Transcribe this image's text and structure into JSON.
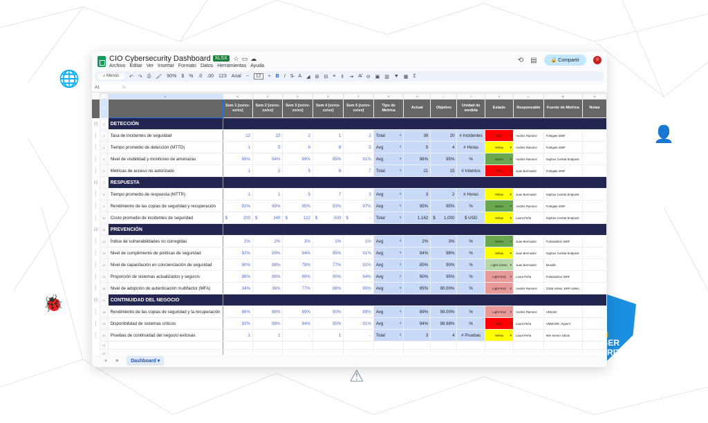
{
  "app": {
    "title": "CIO Cybersecurity Dashboard",
    "badge": "XLSX",
    "menu": [
      "Archivo",
      "Editar",
      "Ver",
      "Insertar",
      "Formato",
      "Datos",
      "Herramientas",
      "Ayuda"
    ],
    "share_label": "Compartir",
    "avatar_initial": "0"
  },
  "toolbar": {
    "search": "Menús",
    "zoom": "90%",
    "font": "Arial",
    "font_size": "12",
    "currency": "$",
    "percent": "%",
    "dec_dec": ".0",
    "inc_dec": ".00",
    "format": "123",
    "bold": "B",
    "italic": "I"
  },
  "formula_bar": {
    "cell": "A1",
    "fx": "fx"
  },
  "columns": [
    "A",
    "B",
    "C",
    "D",
    "E",
    "F",
    "G",
    "H",
    "I",
    "J",
    "K",
    "L",
    "M",
    "N"
  ],
  "headers": [
    "",
    "Sem 1 [xx/xx-xx/xx]",
    "Sem 2 [xx/xx-xx/xx]",
    "Sem 3 [xx/xx-xx/xx]",
    "Sem 4 [xx/xx-xx/xx]",
    "Sem 5 [xx/xx-xx/xx]",
    "Tipo de Metrica",
    "Actual",
    "Objetivo",
    "Unidad de medida",
    "Estado",
    "Responsable",
    "Fuente de Metrica",
    "Notas"
  ],
  "status_colors": {
    "Red": "#ff0000",
    "Yellow": "#ffff00",
    "Green": "#6aa84f",
    "Light Green": "#b6d7a8",
    "Light Red": "#ea9999"
  },
  "rows": [
    {
      "section": "DETECCIÓN"
    },
    {
      "metric": "Tasa de incidentes de seguridad",
      "weeks": [
        "12",
        "22",
        "2",
        "1",
        "2"
      ],
      "type": "Total",
      "actual": "39",
      "target": "20",
      "unit": "# Incidentes",
      "status": "Red",
      "owner": "Andrés Ramirez",
      "source": "Fortigate 200F"
    },
    {
      "metric": "Tiempo promedio de detección (MTTD)",
      "weeks": [
        "1",
        "5",
        "6",
        "8",
        "5"
      ],
      "type": "Avg",
      "actual": "5",
      "target": "4",
      "unit": "# Horas",
      "status": "Yellow",
      "owner": "Andrés Ramirez",
      "source": "Fortigate 200F"
    },
    {
      "metric": "Nivel de visibilidad y monitoreo de amenazas",
      "weeks": [
        "99%",
        "94%",
        "99%",
        "95%",
        "91%"
      ],
      "type": "Avg",
      "actual": "96%",
      "target": "95%",
      "unit": "%",
      "status": "Green",
      "owner": "Andrés Ramirez",
      "source": "Sophos Central Endpoint"
    },
    {
      "metric": "Métricas de acceso no autorizado",
      "weeks": [
        "1",
        "2",
        "5",
        "6",
        "7"
      ],
      "type": "Total",
      "actual": "21",
      "target": "15",
      "unit": "# Intentos",
      "status": "Red",
      "owner": "Juan Bermudez",
      "source": "Fortigate 200F"
    },
    {
      "section": "RESPUESTA"
    },
    {
      "metric": "Tiempo promedio de respuesta (MTTR)",
      "weeks": [
        "1",
        "1",
        "5",
        "7",
        "3"
      ],
      "type": "Avg",
      "actual": "3",
      "target": "2",
      "unit": "# Horas",
      "status": "Yellow",
      "owner": "Juan Bermudez",
      "source": "Sophos Central Endpoint"
    },
    {
      "metric": "Rendimiento de las copias de seguridad y recuperación",
      "weeks": [
        "92%",
        "99%",
        "95%",
        "93%",
        "97%"
      ],
      "type": "Avg",
      "actual": "95%",
      "target": "95%",
      "unit": "%",
      "status": "Green",
      "owner": "Andrés Ramirez",
      "source": "Fortigate 200F"
    },
    {
      "metric": "Costo promedio de incidentes de seguridad",
      "currency": "$",
      "weeks": [
        "200",
        "340",
        "122",
        "500",
        "-"
      ],
      "type": "Total",
      "actual": "1,162",
      "target_currency": "$",
      "target": "1,000",
      "unit": "$ USD",
      "status": "Yellow",
      "owner": "Laura Peña",
      "source": "Sophos Central Endpoint"
    },
    {
      "section": "PREVENCIÓN"
    },
    {
      "metric": "Índice de vulnerabilidades no corregidas",
      "weeks": [
        "2%",
        "2%",
        "3%",
        "1%",
        "1%"
      ],
      "type": "Avg",
      "actual": "2%",
      "target": "3%",
      "unit": "%",
      "status": "Green",
      "owner": "Juan Bermudez",
      "source": "Fortianalizer 200F"
    },
    {
      "metric": "Nivel de cumplimiento de políticas de seguridad",
      "weeks": [
        "92%",
        "99%",
        "94%",
        "95%",
        "91%"
      ],
      "type": "Avg",
      "actual": "94%",
      "target": "98%",
      "unit": "%",
      "status": "Yellow",
      "owner": "Juan Bermudez",
      "source": "Sophos Central Endpoint"
    },
    {
      "metric": "Nivel de capacitación en concienciación de seguridad",
      "weeks": [
        "90%",
        "88%",
        "78%",
        "77%",
        "91%"
      ],
      "type": "Avg",
      "actual": "85%",
      "target": "90%",
      "unit": "%",
      "status": "Light Green",
      "owner": "Juan Bermudez",
      "source": "Moodle"
    },
    {
      "metric": "Proporción de sistemas actualizados y seguros",
      "weeks": [
        "88%",
        "88%",
        "89%",
        "90%",
        "94%"
      ],
      "type": "Avg",
      "actual": "90%",
      "target": "95%",
      "unit": "%",
      "status": "Light Red",
      "owner": "Laura Peña",
      "source": "Fortianalizer 200F"
    },
    {
      "metric": "Nivel de adopción de autenticación multifactor (MFA)",
      "weeks": [
        "34%",
        "36%",
        "77%",
        "88%",
        "90%"
      ],
      "type": "Avg",
      "actual": "65%",
      "target": "90.00%",
      "unit": "%",
      "status": "Light Red",
      "owner": "Andrés Ramirez",
      "source": "O365 Admin, ERP Admin,"
    },
    {
      "section": "CONTINUIDAD DEL NEGOCIO"
    },
    {
      "metric": "Rendimiento de las copias de seguridad y la recuperación",
      "weeks": [
        "88%",
        "88%",
        "89%",
        "90%",
        "89%"
      ],
      "type": "Avg",
      "actual": "89%",
      "target": "99.00%",
      "unit": "%",
      "status": "Light Red",
      "owner": "Andrés Ramirez",
      "source": "VEEAM"
    },
    {
      "metric": "Disponibilidad de sistemas críticos",
      "weeks": [
        "92%",
        "99%",
        "94%",
        "95%",
        "91%"
      ],
      "type": "Avg",
      "actual": "94%",
      "target": "99.98%",
      "unit": "%",
      "status": "Red",
      "owner": "Laura Peña",
      "source": "VMWARE, HyperV"
    },
    {
      "metric": "Pruebas de continuidad del negocio exitosas",
      "weeks": [
        "1",
        "1",
        "-",
        "1",
        "-"
      ],
      "type": "Total",
      "actual": "3",
      "target": "4",
      "unit": "# Pruebas",
      "status": "Yellow",
      "owner": "Laura Peña",
      "source": "Win Server Admin"
    }
  ],
  "sheet_tabs": [
    "Dashboard"
  ],
  "decor": {
    "emblem": "CYBER SECURITY"
  }
}
